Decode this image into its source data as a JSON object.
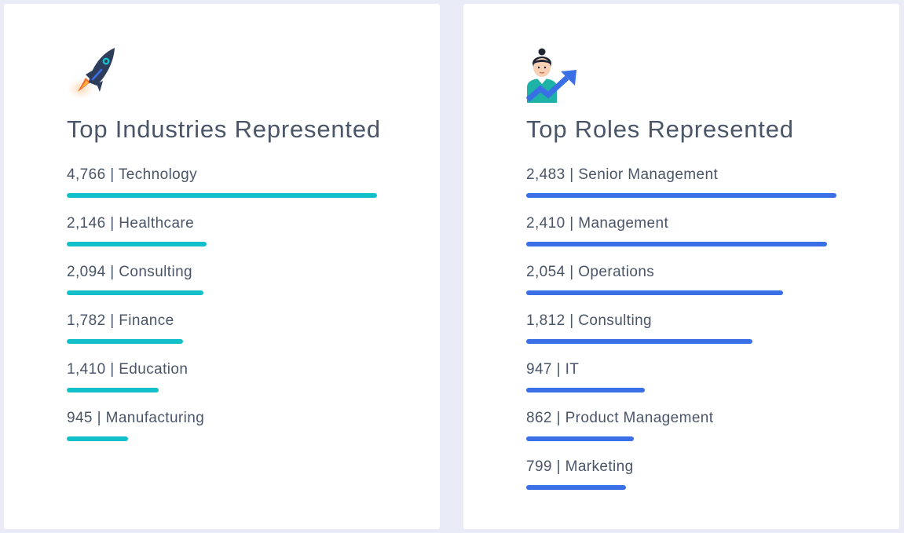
{
  "colors": {
    "industries_bar": "#13c0c9",
    "roles_bar": "#3a6fe6"
  },
  "cards": {
    "industries": {
      "icon": "rocket-icon",
      "title": "Top Industries Represented"
    },
    "roles": {
      "icon": "person-growth-arrow-icon",
      "title": "Top Roles Represented"
    }
  },
  "chart_data": [
    {
      "type": "bar",
      "orientation": "horizontal",
      "title": "Top Industries Represented",
      "categories": [
        "Technology",
        "Healthcare",
        "Consulting",
        "Finance",
        "Education",
        "Manufacturing"
      ],
      "values": [
        4766,
        2146,
        2094,
        1782,
        1410,
        945
      ],
      "labels": [
        "4,766 | Technology",
        "2,146 | Healthcare",
        "2,094 | Consulting",
        "1,782 | Finance",
        "1,410 | Education",
        "945 | Manufacturing"
      ]
    },
    {
      "type": "bar",
      "orientation": "horizontal",
      "title": "Top Roles Represented",
      "categories": [
        "Senior Management",
        "Management",
        "Operations",
        "Consulting",
        "IT",
        "Product Management",
        "Marketing"
      ],
      "values": [
        2483,
        2410,
        2054,
        1812,
        947,
        862,
        799
      ],
      "labels": [
        "2,483 | Senior Management",
        "2,410 | Management",
        "2,054 | Operations",
        "1,812 | Consulting",
        "947 | IT",
        "862 | Product Management",
        "799 | Marketing"
      ]
    }
  ]
}
